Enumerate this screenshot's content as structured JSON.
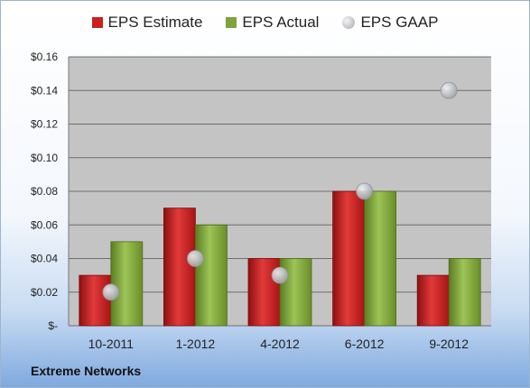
{
  "chart_data": {
    "type": "bar",
    "categories": [
      "10-2011",
      "1-2012",
      "4-2012",
      "6-2012",
      "9-2012"
    ],
    "series": [
      {
        "name": "EPS Estimate",
        "kind": "bar",
        "values": [
          0.03,
          0.07,
          0.04,
          0.08,
          0.03
        ],
        "color": "#cc1f1f"
      },
      {
        "name": "EPS Actual",
        "kind": "bar",
        "values": [
          0.05,
          0.06,
          0.04,
          0.08,
          0.04
        ],
        "color": "#7ea33a"
      },
      {
        "name": "EPS GAAP",
        "kind": "marker",
        "values": [
          0.02,
          0.04,
          0.03,
          0.08,
          0.14
        ],
        "color": "#b8bcc2"
      }
    ],
    "ylim": [
      0,
      0.16
    ],
    "yticks": [
      0,
      0.02,
      0.04,
      0.06,
      0.08,
      0.1,
      0.12,
      0.14,
      0.16
    ],
    "ytick_labels": [
      "$-",
      "$0.02",
      "$0.04",
      "$0.06",
      "$0.08",
      "$0.10",
      "$0.12",
      "$0.14",
      "$0.16"
    ],
    "grid": true,
    "legend_position": "top"
  },
  "footer": {
    "company": "Extreme Networks"
  }
}
